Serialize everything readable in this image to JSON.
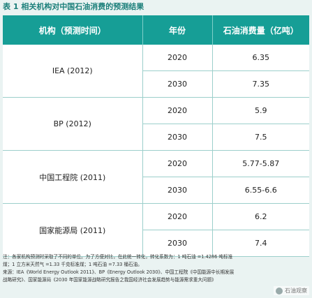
{
  "caption": "表 1 相关机构对中国石油消费的预测结果",
  "headers": [
    "机构（预测时间）",
    "年份",
    "石油消费量（亿吨）"
  ],
  "groups": [
    {
      "org": "IEA (2012)",
      "rows": [
        {
          "year": "2020",
          "value": "6.35"
        },
        {
          "year": "2030",
          "value": "7.35"
        }
      ]
    },
    {
      "org": "BP (2012)",
      "rows": [
        {
          "year": "2020",
          "value": "5.9"
        },
        {
          "year": "2030",
          "value": "7.5"
        }
      ]
    },
    {
      "org": "中国工程院 (2011)",
      "rows": [
        {
          "year": "2020",
          "value": "5.77-5.87"
        },
        {
          "year": "2030",
          "value": "6.55-6.6"
        }
      ]
    },
    {
      "org": "国家能源局 (2011)",
      "rows": [
        {
          "year": "2020",
          "value": "6.2"
        },
        {
          "year": "2030",
          "value": "7.4"
        }
      ]
    }
  ],
  "notes": [
    "注：各家机构预测时采取了不同的单位。为了方便对比，在此统一转化，转化系数为：1 吨石油 =1.4286 吨标准",
    "煤；1 立方米天然气 =1.33 千克标准煤；1 吨石油 =7.33 桶石油。",
    "来源：IEA《World Energy Outlook 2011》、BP《Energy Outlook 2030》、中国工程院《中国能源中长期发展",
    "战略研究》、国家能源局《2030 年国家能源战略研究报告之我国经济社会发展趋势与能源需求重大问题》"
  ],
  "watermark": "石油观察"
}
